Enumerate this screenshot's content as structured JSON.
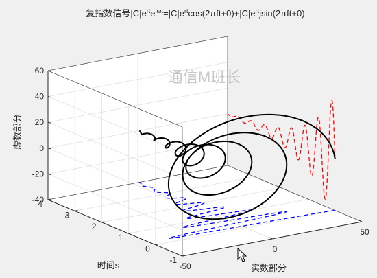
{
  "title": {
    "prefix": "复指数信号|C|e",
    "rt1": "rt",
    "e1": "e",
    "jwt": "jωt",
    "mid": "=|C|e",
    "rt2": "rt",
    "cos": "cos(2πft+0)+|C|e",
    "rt3": "rt",
    "sin": "jsin(2πft+0)"
  },
  "watermark": "通信M班长",
  "chart_data": {
    "type": "line3d",
    "xlabel": "实数部分",
    "ylabel": "时间s",
    "zlabel": "虚数部分",
    "xlim": [
      -50,
      50
    ],
    "ylim": [
      -1,
      4
    ],
    "zlim": [
      -40,
      60
    ],
    "x_ticks": [
      "-50",
      "0",
      "50"
    ],
    "y_ticks": [
      "-1",
      "0",
      "1",
      "2",
      "3",
      "4"
    ],
    "z_ticks": [
      "-40",
      "-20",
      "0",
      "20",
      "40",
      "60"
    ],
    "grid": true,
    "signal": {
      "amplitude": 50,
      "decay_rate": -1,
      "frequency_hz": 2,
      "phase": 0,
      "t_range": [
        0,
        4
      ]
    },
    "series": [
      {
        "role": "spiral",
        "color": "#000000",
        "style": "solid"
      },
      {
        "role": "real-part projection",
        "color": "#0000ff",
        "style": "dashed"
      },
      {
        "role": "imag-part projection",
        "color": "#ff0000",
        "style": "dashed"
      }
    ]
  },
  "colors": {
    "figure_bg": "#f0f0f0",
    "axes_bg": "#ffffff",
    "grid": "#e6e6e6",
    "axis_line": "#262626"
  }
}
